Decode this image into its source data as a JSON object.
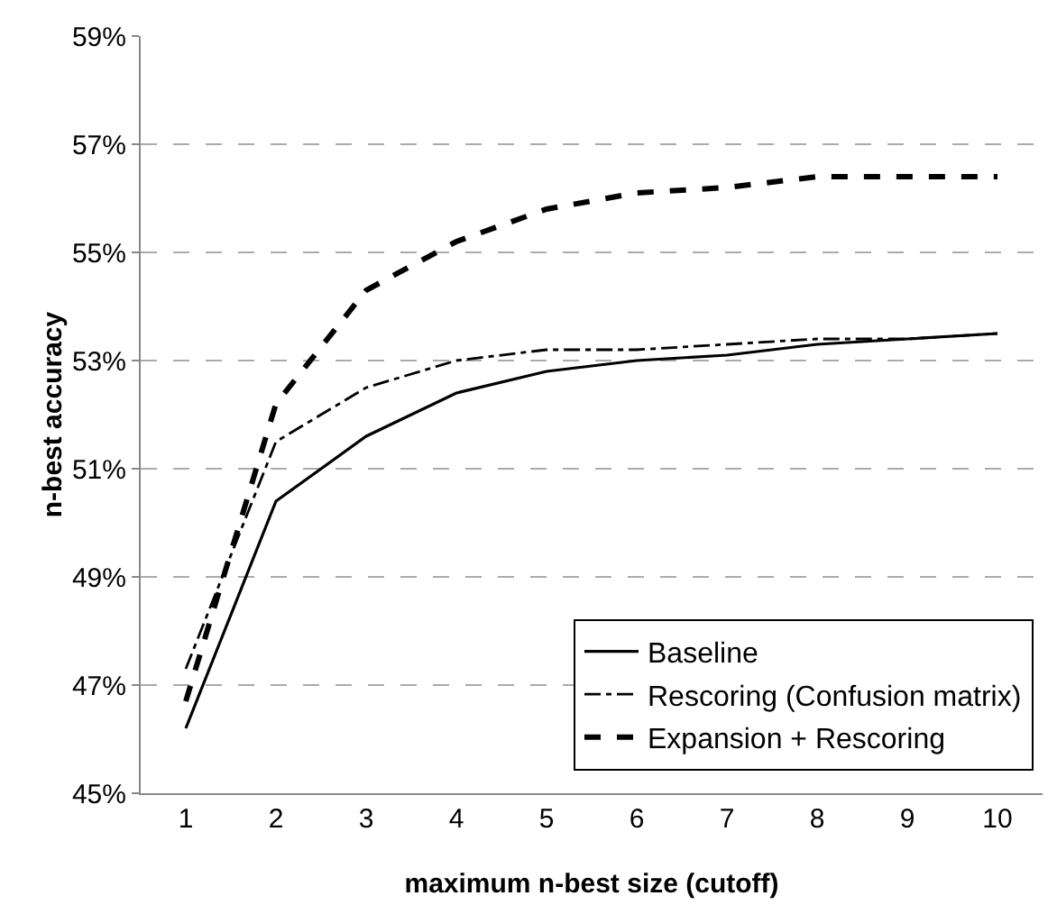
{
  "chart_data": {
    "type": "line",
    "xlabel": "maximum n-best size (cutoff)",
    "ylabel": "n-best accuracy",
    "categories": [
      "1",
      "2",
      "3",
      "4",
      "5",
      "6",
      "7",
      "8",
      "9",
      "10"
    ],
    "series": [
      {
        "name": "Baseline",
        "color": "#000000",
        "line_style": "solid",
        "values": [
          46.2,
          50.4,
          51.6,
          52.4,
          52.8,
          53.0,
          53.1,
          53.3,
          53.4,
          53.5
        ]
      },
      {
        "name": "Rescoring (Confusion matrix)",
        "color": "#000000",
        "line_style": "dashdot",
        "values": [
          47.3,
          51.5,
          52.5,
          53.0,
          53.2,
          53.2,
          53.3,
          53.4,
          53.4,
          53.5
        ]
      },
      {
        "name": "Expansion + Rescoring",
        "color": "#000000",
        "line_style": "dashed",
        "values": [
          46.7,
          52.2,
          54.3,
          55.2,
          55.8,
          56.1,
          56.2,
          56.4,
          56.4,
          56.4
        ]
      }
    ],
    "ylim": [
      45,
      59
    ],
    "yticks": [
      {
        "value": 45,
        "label": "45%"
      },
      {
        "value": 47,
        "label": "47%"
      },
      {
        "value": 49,
        "label": "49%"
      },
      {
        "value": 51,
        "label": "51%"
      },
      {
        "value": 53,
        "label": "53%"
      },
      {
        "value": 55,
        "label": "55%"
      },
      {
        "value": 57,
        "label": "57%"
      },
      {
        "value": 59,
        "label": "59%"
      }
    ],
    "grid": "y",
    "legend": "bottom right",
    "marker": "none"
  }
}
